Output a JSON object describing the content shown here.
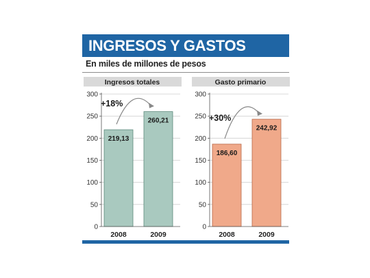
{
  "header": {
    "title": "INGRESOS Y GASTOS",
    "subtitle": "En miles de millones de pesos"
  },
  "colors": {
    "banner": "#1f65a4",
    "panel_header": "#d9d9d9",
    "income_bar": "#a9c9bf",
    "income_stroke": "#5c8a7c",
    "spending_bar": "#f0a98a",
    "spending_stroke": "#b8694a"
  },
  "chart_data": [
    {
      "type": "bar",
      "title": "Ingresos totales",
      "categories": [
        "2008",
        "2009"
      ],
      "values": [
        219.13,
        260.21
      ],
      "value_labels": [
        "219,13",
        "260,21"
      ],
      "change_label": "+18%",
      "y_ticks": [
        "0",
        "50",
        "100",
        "150",
        "200",
        "250",
        "300"
      ],
      "ylim": [
        0,
        300
      ],
      "xlabel": "",
      "ylabel": ""
    },
    {
      "type": "bar",
      "title": "Gasto primario",
      "categories": [
        "2008",
        "2009"
      ],
      "values": [
        186.6,
        242.92
      ],
      "value_labels": [
        "186,60",
        "242,92"
      ],
      "change_label": "+30%",
      "y_ticks": [
        "0",
        "50",
        "100",
        "150",
        "200",
        "250",
        "300"
      ],
      "ylim": [
        0,
        300
      ],
      "xlabel": "",
      "ylabel": ""
    }
  ]
}
